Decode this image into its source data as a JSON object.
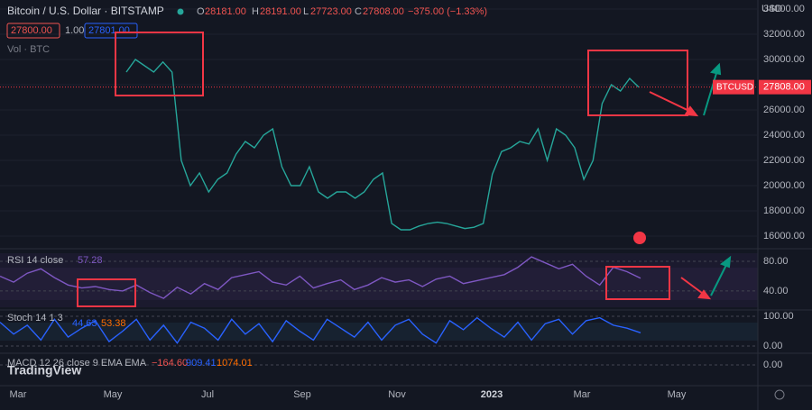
{
  "header": {
    "title": "Bitcoin / U.S. Dollar · BITSTAMP",
    "open_label": "O",
    "open": "28181.00",
    "high_label": "H",
    "high": "28191.00",
    "low_label": "L",
    "low": "27723.00",
    "close_label": "C",
    "close": "27808.00",
    "change": "−375.00 (−1.33%)",
    "sell": "27800.00",
    "spread": "1.00",
    "buy": "27801.00",
    "volume": "Vol · BTC",
    "currency": "USD"
  },
  "chart_data": [
    {
      "type": "line",
      "name": "price",
      "color": "#26a69a",
      "ylim": [
        15430,
        34710
      ],
      "yticks": [
        {
          "value": 16000,
          "label": "16000.00"
        },
        {
          "value": 18000,
          "label": "18000.00"
        },
        {
          "value": 20000,
          "label": "20000.00"
        },
        {
          "value": 22000,
          "label": "22000.00"
        },
        {
          "value": 24000,
          "label": "24000.00"
        },
        {
          "value": 26000,
          "label": "26000.00"
        },
        {
          "value": 28000,
          "label": "28000.00"
        },
        {
          "value": 30000,
          "label": "30000.00"
        },
        {
          "value": 32000,
          "label": "32000.00"
        },
        {
          "value": 34000,
          "label": "34000.00"
        }
      ],
      "values": [
        29000,
        30000,
        29500,
        29000,
        29800,
        29000,
        22000,
        20000,
        21000,
        19500,
        20500,
        21000,
        22500,
        23500,
        23000,
        24000,
        24500,
        21500,
        20000,
        20000,
        21500,
        19500,
        19000,
        19500,
        19500,
        19000,
        19500,
        20500,
        21000,
        17000,
        16500,
        16500,
        16800,
        17000,
        17100,
        17000,
        16800,
        16600,
        16700,
        17000,
        20900,
        22700,
        23000,
        23500,
        23300,
        24500,
        22000,
        24500,
        24000,
        23000,
        20500,
        22000,
        26500,
        28000,
        27500,
        28500,
        27808
      ],
      "symbol": "BTCUSD",
      "last_price": 27808,
      "last_price_label": "27808.00"
    },
    {
      "type": "line",
      "name": "RSI",
      "label": "RSI 14 close",
      "value_label": "57.28",
      "color": "#7e57c2",
      "ylim": [
        18,
        91
      ],
      "yticks": [
        {
          "value": 80,
          "label": "80.00"
        },
        {
          "value": 40,
          "label": "40.00"
        }
      ],
      "values": [
        60,
        52,
        64,
        70,
        58,
        48,
        44,
        46,
        42,
        40,
        48,
        38,
        30,
        45,
        36,
        50,
        42,
        58,
        62,
        66,
        52,
        48,
        60,
        44,
        50,
        55,
        42,
        48,
        58,
        52,
        55,
        46,
        56,
        60,
        50,
        54,
        58,
        62,
        72,
        86,
        78,
        70,
        76,
        60,
        48,
        72,
        66,
        57.28
      ]
    },
    {
      "type": "line",
      "name": "Stoch",
      "label": "Stoch 14 1 3",
      "k_label": "44.63",
      "d_label": "53.38",
      "color": "#2962ff",
      "ylim": [
        -24,
        118
      ],
      "yticks": [
        {
          "value": 100,
          "label": "100.00"
        },
        {
          "value": 0,
          "label": "0.00"
        }
      ],
      "values": [
        80,
        40,
        70,
        20,
        90,
        30,
        60,
        85,
        15,
        50,
        90,
        20,
        70,
        10,
        80,
        60,
        20,
        90,
        40,
        75,
        15,
        85,
        50,
        20,
        90,
        60,
        30,
        80,
        20,
        70,
        90,
        40,
        10,
        85,
        55,
        95,
        60,
        30,
        80,
        20,
        75,
        90,
        40,
        85,
        95,
        70,
        60,
        44.63
      ]
    },
    {
      "type": "macd",
      "label": "MACD 12 26 close 9 EMA EMA",
      "hist_label": "−164.60",
      "macd_label": "909.41",
      "signal_label": "1074.01",
      "ylim": [
        -3000,
        1500
      ],
      "yticks": [
        {
          "value": 0,
          "label": "0.00"
        }
      ]
    }
  ],
  "x_axis": {
    "labels": [
      "Mar",
      "May",
      "Jul",
      "Sep",
      "Nov",
      "2023",
      "Mar",
      "May"
    ]
  },
  "logo": "TradingView"
}
